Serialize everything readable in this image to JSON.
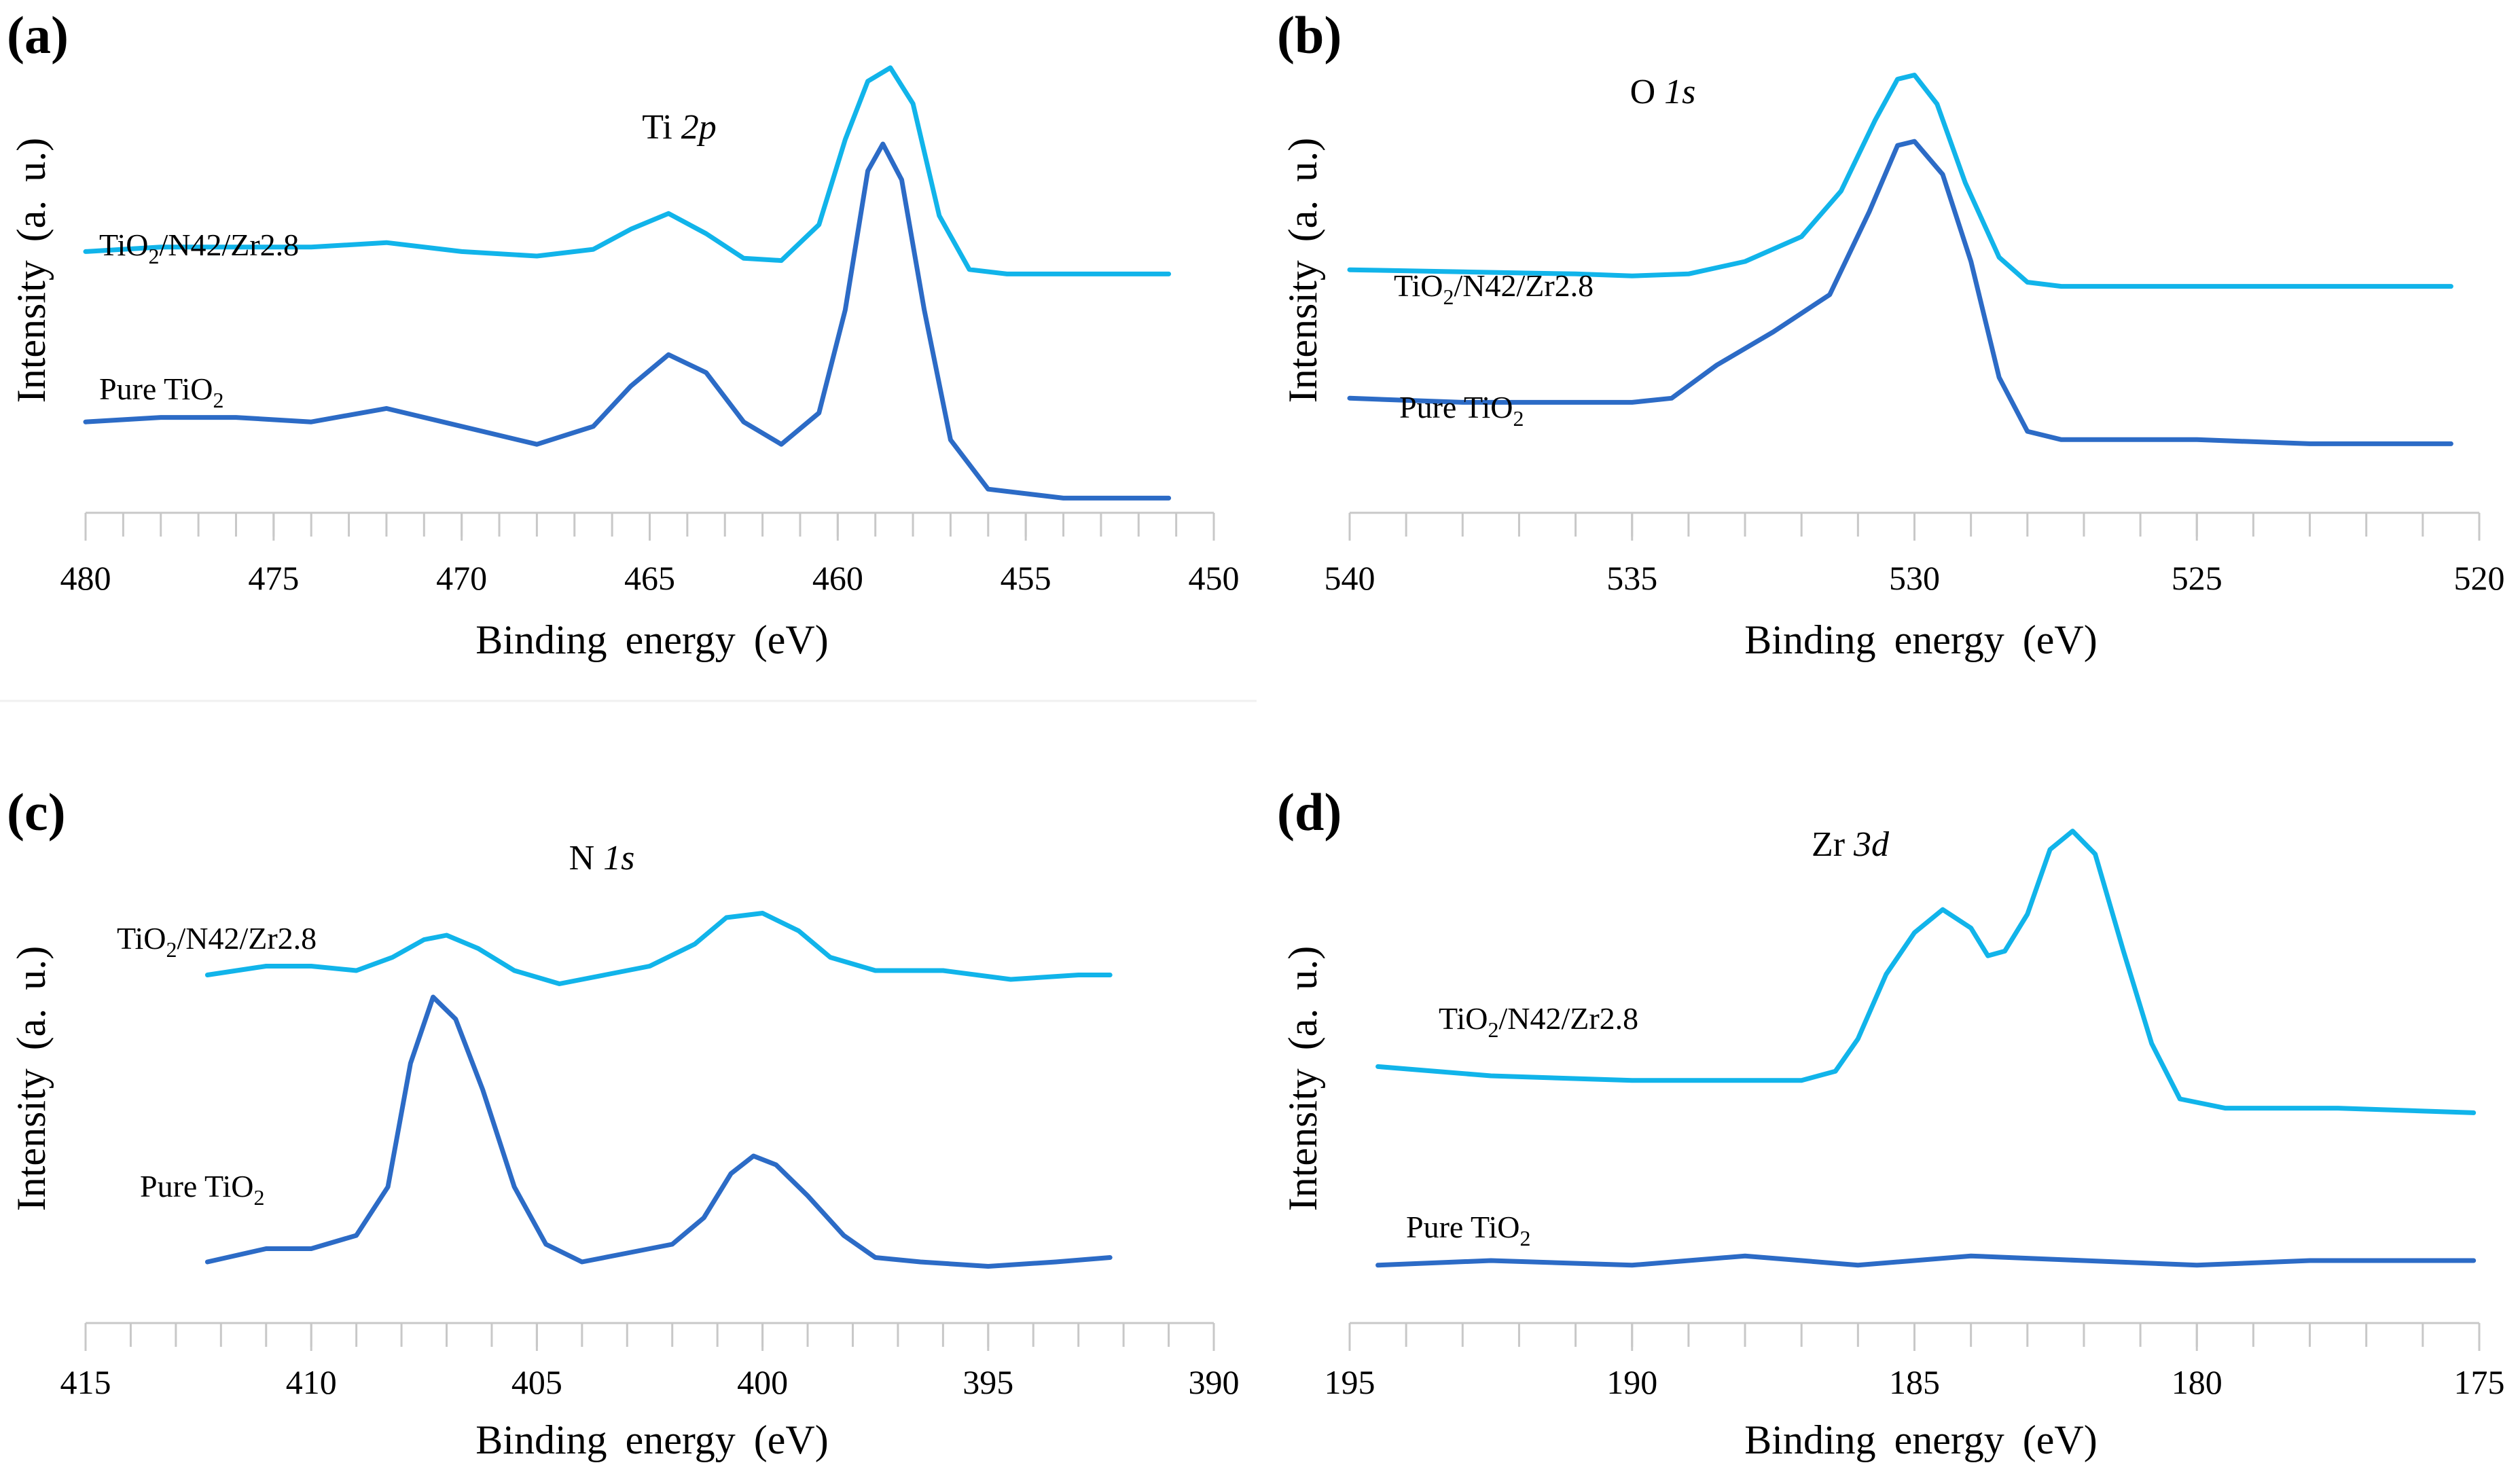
{
  "colors": {
    "zr_sample": "#11b4ea",
    "pure_tio2": "#2c6bc6"
  },
  "chart_data": [
    {
      "type": "line",
      "panel": "(a)",
      "title": "Ti 2p",
      "title_element": "Ti",
      "title_orbital": "2p",
      "xlabel": "Binding energy (eV)",
      "ylabel": "Intensity (a. u.)",
      "xlim": [
        480,
        450
      ],
      "ylim": [
        0,
        100
      ],
      "ticks": [
        "480",
        "475",
        "470",
        "465",
        "460",
        "455",
        "450"
      ],
      "series": [
        {
          "name": "TiO2/N42/Zr2.8",
          "label_main": "TiO",
          "label_sub": "2",
          "label_rest": "/N42/Zr2.8",
          "color": "#11b4ea",
          "x": [
            480,
            478,
            476,
            474,
            472,
            470,
            468,
            466.5,
            465.5,
            464.5,
            463.5,
            462.5,
            461.5,
            460.5,
            459.8,
            459.2,
            458.6,
            458,
            457.3,
            456.5,
            455.5,
            454,
            452,
            451.2
          ],
          "y": [
            56,
            57,
            57,
            57,
            58,
            56,
            55,
            56.5,
            61,
            64.5,
            60,
            54.5,
            54,
            62,
            81,
            94,
            97,
            89,
            64,
            52,
            51,
            51,
            51,
            51
          ]
        },
        {
          "name": "Pure TiO2",
          "label_main": "Pure TiO",
          "label_sub": "2",
          "label_rest": "",
          "color": "#2c6bc6",
          "x": [
            480,
            478,
            476,
            474,
            472,
            470,
            468,
            466.5,
            465.5,
            464.5,
            463.5,
            462.5,
            461.5,
            460.5,
            459.8,
            459.2,
            458.8,
            458.3,
            457.7,
            457,
            456,
            454,
            452,
            451.2
          ],
          "y": [
            18,
            19,
            19,
            18,
            21,
            17,
            13,
            17,
            26,
            33,
            29,
            18,
            13,
            20,
            43,
            74,
            80,
            72,
            43,
            14,
            3,
            1,
            1,
            1
          ]
        }
      ]
    },
    {
      "type": "line",
      "panel": "(b)",
      "title": "O 1s",
      "title_element": "O",
      "title_orbital": "1s",
      "xlabel": "Binding energy (eV)",
      "ylabel": "Intensity (a. u.)",
      "xlim": [
        540,
        520
      ],
      "ylim": [
        0,
        100
      ],
      "ticks": [
        "540",
        "535",
        "530",
        "525",
        "520"
      ],
      "series": [
        {
          "name": "TiO2/N42/Zr2.8",
          "label_main": "TiO",
          "label_sub": "2",
          "label_rest": "/N42/Zr2.8",
          "color": "#11b4ea",
          "x": [
            540,
            538,
            536,
            535,
            534,
            533,
            532,
            531.3,
            530.7,
            530.3,
            530,
            529.6,
            529.1,
            528.5,
            528,
            527.4,
            526.5,
            525,
            523,
            520.5
          ],
          "y": [
            48,
            47.5,
            47,
            46.5,
            47,
            50,
            56,
            67,
            84,
            94,
            95,
            88,
            69,
            51,
            45,
            44,
            44,
            44,
            44,
            44
          ]
        },
        {
          "name": "Pure TiO2",
          "label_main": "Pure TiO",
          "label_sub": "2",
          "label_rest": "",
          "color": "#2c6bc6",
          "x": [
            540,
            538,
            536,
            535,
            534.3,
            533.5,
            532.5,
            531.5,
            530.8,
            530.3,
            530,
            529.5,
            529,
            528.5,
            528,
            527.4,
            526.5,
            525,
            523,
            520.5
          ],
          "y": [
            17,
            16,
            16,
            16,
            17,
            25,
            33,
            42,
            62,
            78,
            79,
            71,
            50,
            22,
            9,
            7,
            7,
            7,
            6,
            6
          ]
        }
      ]
    },
    {
      "type": "line",
      "panel": "(c)",
      "title": "N 1s",
      "title_element": "N",
      "title_orbital": "1s",
      "xlabel": "Binding energy (eV)",
      "ylabel": "Intensity (a. u.)",
      "xlim": [
        415,
        390
      ],
      "ylim": [
        0,
        100
      ],
      "ticks": [
        "415",
        "410",
        "405",
        "400",
        "395",
        "390"
      ],
      "series": [
        {
          "name": "TiO2/N42/Zr2.8",
          "label_main": "TiO",
          "label_sub": "2",
          "label_rest": "/N42/Zr2.8",
          "color": "#11b4ea",
          "x": [
            412.3,
            411,
            410,
            409,
            408.2,
            407.5,
            407,
            406.3,
            405.5,
            404.5,
            403.5,
            402.5,
            401.5,
            400.8,
            400,
            399.2,
            398.5,
            397.5,
            396,
            394.5,
            393,
            392.3
          ],
          "y": [
            73,
            75,
            75,
            74,
            77,
            81,
            82,
            79,
            74,
            71,
            73,
            75,
            80,
            86,
            87,
            83,
            77,
            74,
            74,
            72,
            73,
            73
          ]
        },
        {
          "name": "Pure TiO2",
          "label_main": "Pure TiO",
          "label_sub": "2",
          "label_rest": "",
          "color": "#2c6bc6",
          "x": [
            412.3,
            411,
            410,
            409,
            408.3,
            407.8,
            407.3,
            406.8,
            406.2,
            405.5,
            404.8,
            404,
            403,
            402,
            401.3,
            400.7,
            400.2,
            399.7,
            399,
            398.2,
            397.5,
            396.5,
            395,
            393.5,
            392.3
          ],
          "y": [
            8,
            11,
            11,
            14,
            25,
            53,
            68,
            63,
            47,
            25,
            12,
            8,
            10,
            12,
            18,
            28,
            32,
            30,
            23,
            14,
            9,
            8,
            7,
            8,
            9
          ]
        }
      ]
    },
    {
      "type": "line",
      "panel": "(d)",
      "title": "Zr 3d",
      "title_element": "Zr",
      "title_orbital": "3d",
      "xlabel": "Binding energy (eV)",
      "ylabel": "Intensity (a. u.)",
      "xlim": [
        195,
        175
      ],
      "ylim": [
        0,
        100
      ],
      "ticks": [
        "195",
        "190",
        "185",
        "180",
        "175"
      ],
      "series": [
        {
          "name": "TiO2/N42/Zr2.8",
          "label_main": "TiO",
          "label_sub": "2",
          "label_rest": "/N42/Zr2.8",
          "color": "#11b4ea",
          "x": [
            194.5,
            192.5,
            190,
            188,
            187,
            186.4,
            186,
            185.5,
            185,
            184.5,
            184,
            183.7,
            183.4,
            183,
            182.6,
            182.2,
            181.8,
            181.3,
            180.8,
            180.3,
            179.5,
            177.5,
            175.1
          ],
          "y": [
            47,
            45,
            44,
            44,
            44,
            46,
            53,
            67,
            76,
            81,
            77,
            71,
            72,
            80,
            94,
            98,
            93,
            72,
            52,
            40,
            38,
            38,
            37
          ]
        },
        {
          "name": "Pure TiO2",
          "label_main": "Pure TiO",
          "label_sub": "2",
          "label_rest": "",
          "color": "#2c6bc6",
          "x": [
            194.5,
            192.5,
            190,
            188,
            186,
            184,
            182,
            180,
            178,
            176,
            175.1
          ],
          "y": [
            4,
            5,
            4,
            6,
            4,
            6,
            5,
            4,
            5,
            5,
            5
          ]
        }
      ]
    }
  ]
}
